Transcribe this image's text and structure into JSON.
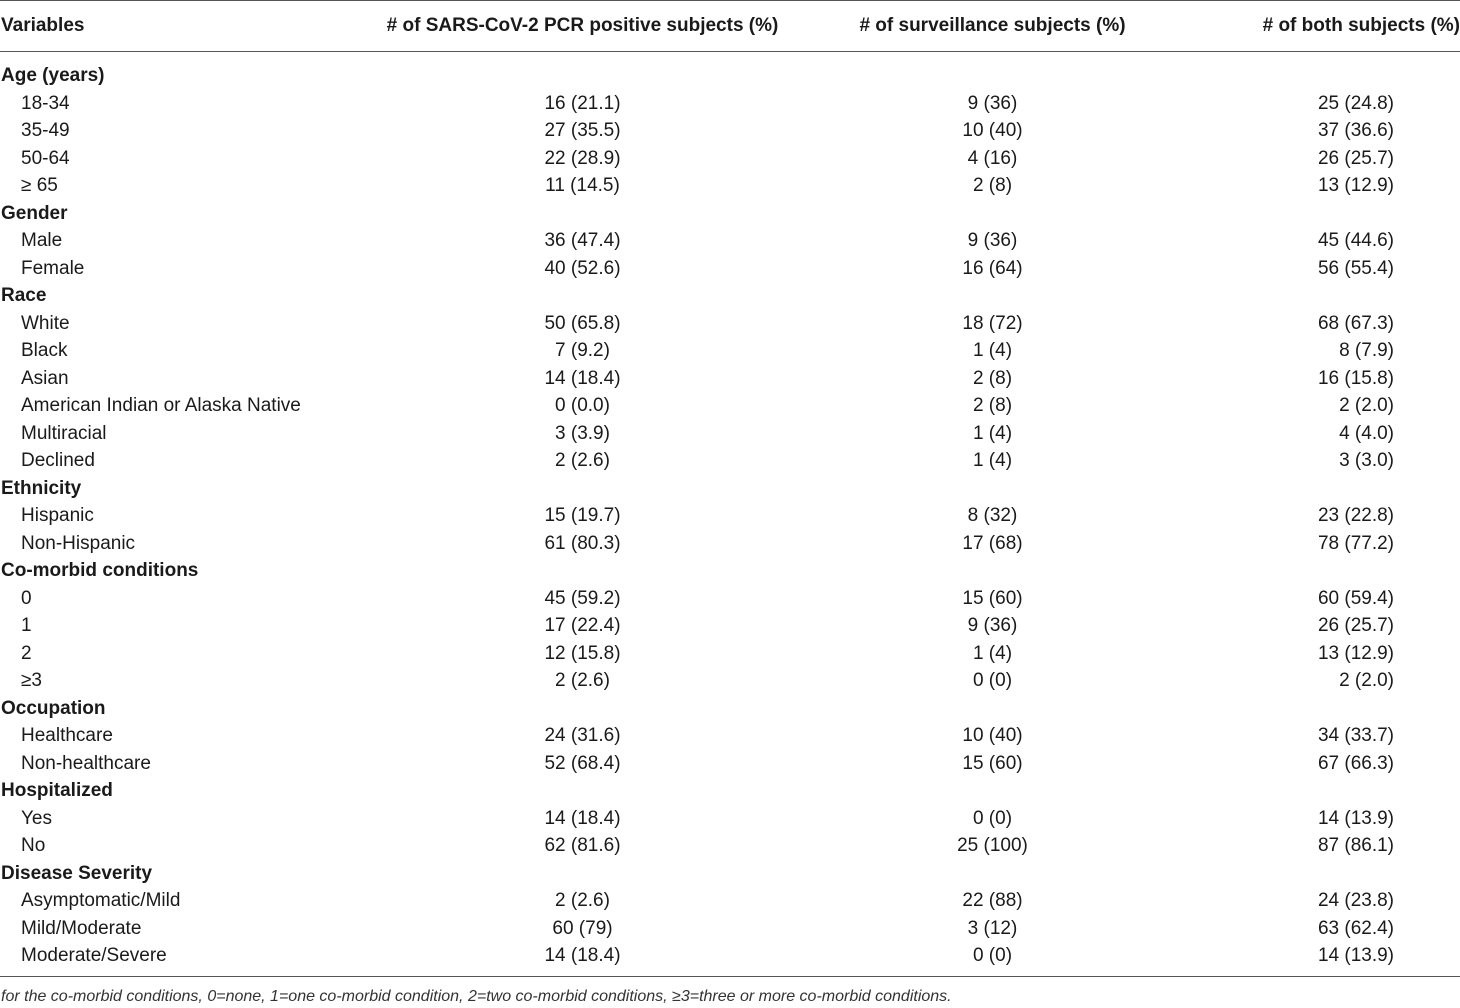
{
  "table": {
    "headers": [
      "Variables",
      "# of SARS-CoV-2 PCR positive subjects (%)",
      "# of surveillance subjects (%)",
      "# of both subjects (%)"
    ],
    "groups": [
      {
        "category": "Age (years)",
        "rows": [
          {
            "label": "18-34",
            "pcr": "16 (21.1)",
            "surv": "9 (36)",
            "both": "25 (24.8)"
          },
          {
            "label": "35-49",
            "pcr": "27 (35.5)",
            "surv": "10 (40)",
            "both": "37 (36.6)"
          },
          {
            "label": "50-64",
            "pcr": "22 (28.9)",
            "surv": "4 (16)",
            "both": "26 (25.7)"
          },
          {
            "label": "≥ 65",
            "pcr": "11 (14.5)",
            "surv": "2 (8)",
            "both": "13 (12.9)"
          }
        ]
      },
      {
        "category": "Gender",
        "rows": [
          {
            "label": "Male",
            "pcr": "36 (47.4)",
            "surv": "9 (36)",
            "both": "45 (44.6)"
          },
          {
            "label": "Female",
            "pcr": "40 (52.6)",
            "surv": "16 (64)",
            "both": "56 (55.4)"
          }
        ]
      },
      {
        "category": "Race",
        "rows": [
          {
            "label": "White",
            "pcr": "50 (65.8)",
            "surv": "18 (72)",
            "both": "68 (67.3)"
          },
          {
            "label": "Black",
            "pcr": "7 (9.2)",
            "surv": "1 (4)",
            "both": "8 (7.9)"
          },
          {
            "label": "Asian",
            "pcr": "14 (18.4)",
            "surv": "2 (8)",
            "both": "16 (15.8)"
          },
          {
            "label": "American Indian or Alaska Native",
            "pcr": "0 (0.0)",
            "surv": "2 (8)",
            "both": "2 (2.0)"
          },
          {
            "label": "Multiracial",
            "pcr": "3 (3.9)",
            "surv": "1 (4)",
            "both": "4 (4.0)"
          },
          {
            "label": "Declined",
            "pcr": "2 (2.6)",
            "surv": "1 (4)",
            "both": "3 (3.0)"
          }
        ]
      },
      {
        "category": "Ethnicity",
        "rows": [
          {
            "label": "Hispanic",
            "pcr": "15 (19.7)",
            "surv": "8 (32)",
            "both": "23 (22.8)"
          },
          {
            "label": "Non-Hispanic",
            "pcr": "61 (80.3)",
            "surv": "17 (68)",
            "both": "78 (77.2)"
          }
        ]
      },
      {
        "category": "Co-morbid conditions",
        "rows": [
          {
            "label": "0",
            "pcr": "45 (59.2)",
            "surv": "15 (60)",
            "both": "60 (59.4)"
          },
          {
            "label": "1",
            "pcr": "17 (22.4)",
            "surv": "9 (36)",
            "both": "26 (25.7)"
          },
          {
            "label": "2",
            "pcr": "12 (15.8)",
            "surv": "1 (4)",
            "both": "13 (12.9)"
          },
          {
            "label": "≥3",
            "pcr": "2 (2.6)",
            "surv": "0 (0)",
            "both": "2 (2.0)"
          }
        ]
      },
      {
        "category": "Occupation",
        "rows": [
          {
            "label": "Healthcare",
            "pcr": "24 (31.6)",
            "surv": "10 (40)",
            "both": "34 (33.7)"
          },
          {
            "label": "Non-healthcare",
            "pcr": "52 (68.4)",
            "surv": "15 (60)",
            "both": "67 (66.3)"
          }
        ]
      },
      {
        "category": "Hospitalized",
        "rows": [
          {
            "label": "Yes",
            "pcr": "14 (18.4)",
            "surv": "0 (0)",
            "both": "14 (13.9)"
          },
          {
            "label": "No",
            "pcr": "62 (81.6)",
            "surv": "25 (100)",
            "both": "87 (86.1)"
          }
        ]
      },
      {
        "category": "Disease Severity",
        "rows": [
          {
            "label": "Asymptomatic/Mild",
            "pcr": "2 (2.6)",
            "surv": "22 (88)",
            "both": "24 (23.8)"
          },
          {
            "label": "Mild/Moderate",
            "pcr": "60 (79)",
            "surv": "3 (12)",
            "both": "63 (62.4)"
          },
          {
            "label": "Moderate/Severe",
            "pcr": "14 (18.4)",
            "surv": "0 (0)",
            "both": "14 (13.9)"
          }
        ]
      }
    ]
  },
  "footnote": "for the co-morbid conditions, 0=none, 1=one co-morbid condition, 2=two co-morbid conditions, ≥3=three or more co-morbid conditions."
}
